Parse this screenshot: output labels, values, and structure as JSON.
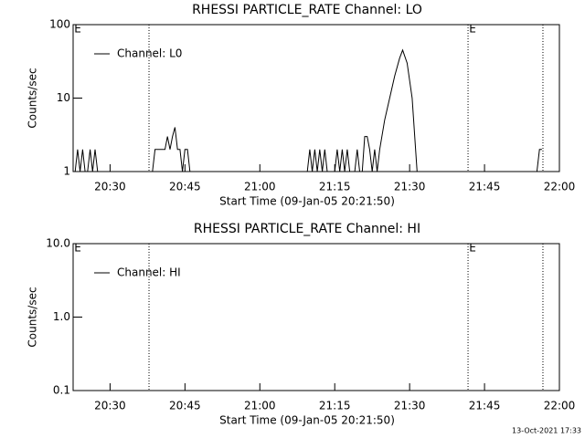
{
  "chart_data": [
    {
      "type": "line",
      "title": "RHESSI PARTICLE_RATE Channel: LO",
      "xlabel": "Start Time (09-Jan-05 20:21:50)",
      "ylabel": "Counts/sec",
      "log_y": true,
      "ylim": [
        1,
        100
      ],
      "yticks": [
        1,
        10,
        100
      ],
      "xlim": [
        22.6,
        120
      ],
      "xticks": [
        {
          "value": 30,
          "label": "20:30"
        },
        {
          "value": 45,
          "label": "20:45"
        },
        {
          "value": 60,
          "label": "21:00"
        },
        {
          "value": 75,
          "label": "21:15"
        },
        {
          "value": 90,
          "label": "21:30"
        },
        {
          "value": 105,
          "label": "21:45"
        },
        {
          "value": 120,
          "label": "22:00"
        }
      ],
      "vlines": [
        37.8,
        101.7,
        116.7
      ],
      "annotations": [
        "E",
        "E"
      ],
      "legend": "upper left",
      "series": [
        {
          "name": "Channel: L0",
          "color": "#000000",
          "x": [
            23,
            23.5,
            24,
            24.5,
            25,
            25.5,
            26,
            26.5,
            27,
            27.5,
            28,
            38.5,
            39,
            41,
            41.5,
            42,
            42.5,
            43,
            43.5,
            44,
            44.5,
            45,
            45.5,
            46,
            69.5,
            70,
            70.5,
            71,
            71.5,
            72,
            72.5,
            73,
            73.5,
            75,
            75.5,
            76,
            76.5,
            77,
            77.5,
            78,
            79,
            79.5,
            80,
            80.5,
            81,
            81.5,
            82,
            82.5,
            83,
            83.5,
            84,
            85,
            86,
            87,
            88,
            88.6,
            89.5,
            90.5,
            91.5,
            115.5,
            116,
            116.5
          ],
          "values": [
            1,
            2,
            1,
            2,
            1,
            1,
            2,
            1,
            2,
            1,
            1,
            1,
            2,
            2,
            3,
            2,
            3,
            4,
            2,
            2,
            1,
            2,
            2,
            1,
            1,
            2,
            1,
            2,
            1,
            2,
            1,
            2,
            1,
            1,
            2,
            1,
            2,
            1,
            2,
            1,
            1,
            2,
            1,
            1,
            3,
            3,
            2,
            1,
            2,
            1,
            2,
            5,
            10,
            20,
            35,
            45,
            30,
            10,
            1,
            1,
            2,
            2
          ]
        }
      ]
    },
    {
      "type": "line",
      "title": "RHESSI PARTICLE_RATE Channel: HI",
      "xlabel": "Start Time (09-Jan-05 20:21:50)",
      "ylabel": "Counts/sec",
      "log_y": true,
      "ylim": [
        0.1,
        10
      ],
      "yticks": [
        {
          "value": 0.1,
          "label": "0.1"
        },
        {
          "value": 1,
          "label": "1.0"
        },
        {
          "value": 10,
          "label": "10.0"
        }
      ],
      "xlim": [
        22.6,
        120
      ],
      "xticks": [
        {
          "value": 30,
          "label": "20:30"
        },
        {
          "value": 45,
          "label": "20:45"
        },
        {
          "value": 60,
          "label": "21:00"
        },
        {
          "value": 75,
          "label": "21:15"
        },
        {
          "value": 90,
          "label": "21:30"
        },
        {
          "value": 105,
          "label": "21:45"
        },
        {
          "value": 120,
          "label": "22:00"
        }
      ],
      "vlines": [
        37.8,
        101.7,
        116.7
      ],
      "annotations": [
        "E",
        "E"
      ],
      "legend": "upper left",
      "series": [
        {
          "name": "Channel: HI",
          "color": "#000000",
          "x": [],
          "values": []
        }
      ]
    }
  ],
  "timestamp": "13-Oct-2021 17:33"
}
